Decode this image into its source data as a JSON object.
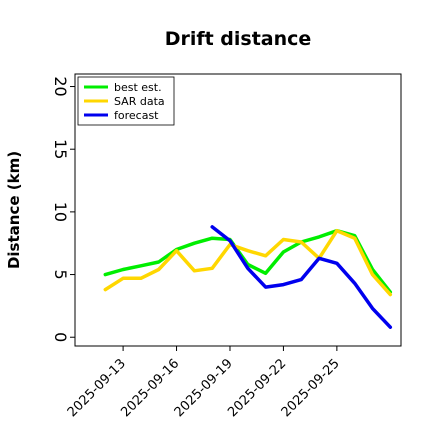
{
  "chart_data": {
    "type": "line",
    "title": "Drift distance",
    "xlabel": "",
    "ylabel": "Distance (km)",
    "ylim": [
      -0.7,
      21
    ],
    "xlim": [
      -1.7,
      16.6
    ],
    "yticks": [
      0,
      5,
      10,
      15,
      20
    ],
    "xtick_positions": [
      1,
      4,
      7,
      10,
      13
    ],
    "xtick_labels": [
      "2025-09-13",
      "2025-09-16",
      "2025-09-19",
      "2025-09-22",
      "2025-09-25"
    ],
    "grid": false,
    "legend_position": "top-left",
    "series": [
      {
        "name": "best est.",
        "color": "#00ee00",
        "x": [
          0,
          1,
          2,
          3,
          4,
          5,
          6,
          7,
          8,
          9,
          10,
          11,
          12,
          13,
          14,
          15,
          16
        ],
        "values": [
          5.0,
          5.4,
          5.7,
          6.0,
          7.0,
          7.5,
          7.9,
          7.8,
          5.8,
          5.1,
          6.8,
          7.6,
          8.0,
          8.5,
          8.1,
          5.4,
          3.6
        ]
      },
      {
        "name": "SAR data",
        "color": "#ffd700",
        "x": [
          0,
          1,
          2,
          3,
          4,
          5,
          6,
          7,
          8,
          9,
          10,
          11,
          12,
          13,
          14,
          15,
          16
        ],
        "values": [
          3.8,
          4.7,
          4.7,
          5.4,
          6.9,
          5.3,
          5.5,
          7.4,
          6.9,
          6.5,
          7.8,
          7.6,
          6.3,
          8.5,
          7.9,
          5.0,
          3.4
        ]
      },
      {
        "name": "forecast",
        "color": "#0000ee",
        "x": [
          6,
          7,
          8,
          9,
          10,
          11,
          12,
          13,
          14,
          15,
          16
        ],
        "values": [
          8.8,
          7.7,
          5.5,
          4.0,
          4.2,
          4.6,
          6.3,
          5.9,
          4.3,
          2.3,
          0.8
        ]
      }
    ]
  }
}
